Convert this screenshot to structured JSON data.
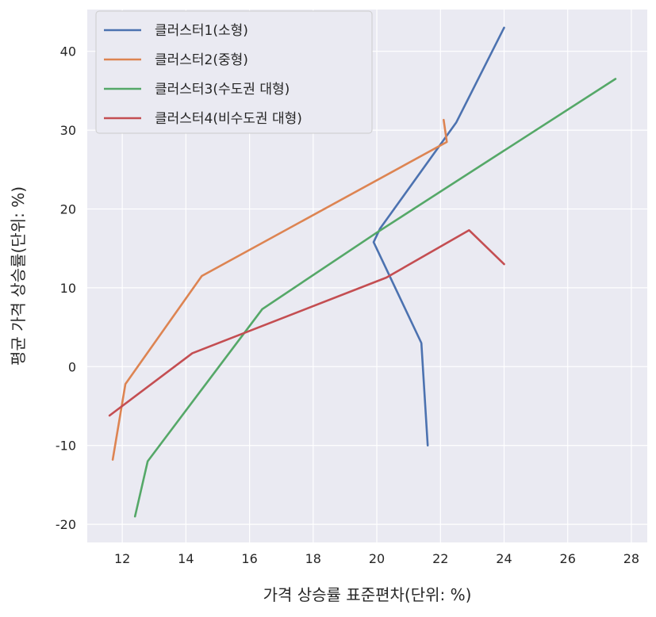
{
  "chart_data": {
    "type": "line",
    "title": "",
    "xlabel": "가격 상승률 표준편차(단위: %)",
    "ylabel": "평균 가격 상승률(단위: %)",
    "xlim": [
      10.9,
      28.5
    ],
    "ylim": [
      -22.3,
      45.3
    ],
    "xticks": [
      12,
      14,
      16,
      18,
      20,
      22,
      24,
      26,
      28
    ],
    "yticks": [
      -20,
      -10,
      0,
      10,
      20,
      30,
      40
    ],
    "grid": true,
    "legend_position": "top-left",
    "series": [
      {
        "name": "클러스터1(소형)",
        "color": "#4c72b0",
        "points": [
          [
            21.6,
            -10
          ],
          [
            21.4,
            3
          ],
          [
            19.9,
            15.8
          ],
          [
            20.1,
            17.5
          ],
          [
            22.5,
            31
          ],
          [
            24.0,
            43
          ]
        ]
      },
      {
        "name": "클러스터2(중형)",
        "color": "#dd8452",
        "points": [
          [
            11.7,
            -11.8
          ],
          [
            12.1,
            -2.2
          ],
          [
            14.5,
            11.5
          ],
          [
            22.2,
            28.5
          ],
          [
            22.1,
            31.3
          ]
        ]
      },
      {
        "name": "클러스터3(수도권 대형)",
        "color": "#55a868",
        "points": [
          [
            12.4,
            -19
          ],
          [
            12.8,
            -12
          ],
          [
            16.4,
            7.3
          ],
          [
            20.0,
            17
          ],
          [
            27.5,
            36.5
          ]
        ]
      },
      {
        "name": "클러스터4(비수도권 대형)",
        "color": "#c44e52",
        "points": [
          [
            11.6,
            -6.2
          ],
          [
            14.2,
            1.7
          ],
          [
            20.3,
            11.3
          ],
          [
            22.9,
            17.3
          ],
          [
            24.0,
            13
          ]
        ]
      }
    ]
  }
}
